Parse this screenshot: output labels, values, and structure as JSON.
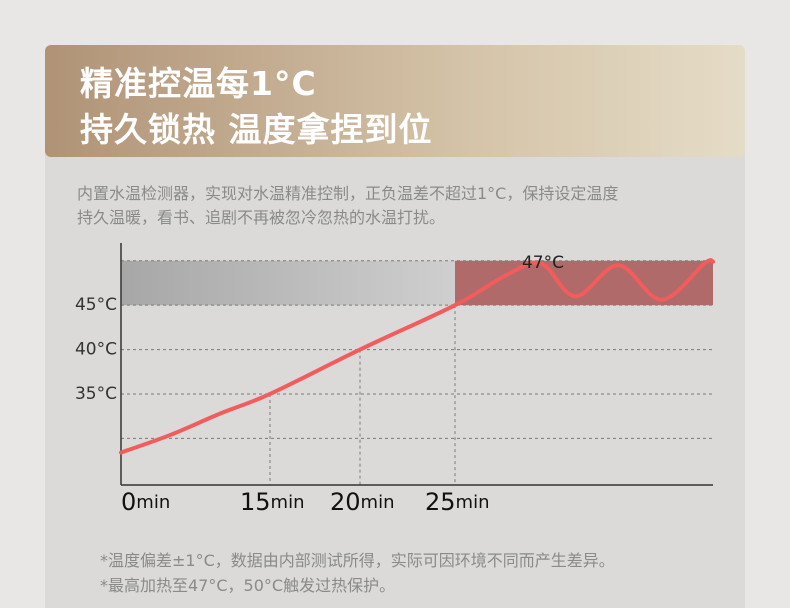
{
  "header": {
    "title_lines": [
      "精准控温每1°C",
      "持久锁热 温度拿捏到位"
    ]
  },
  "description": [
    "内置水温检测器，实现对水温精准控制，正负温差不超过1°C，保持设定温度",
    "持久温暖，看书、追剧不再被忽冷忽热的水温打扰。"
  ],
  "chart_data": {
    "type": "line",
    "x_unit": "min",
    "xlim": [
      0,
      40
    ],
    "xticks": [
      0,
      15,
      20,
      25
    ],
    "ylim": [
      24.75,
      52
    ],
    "yticks": [
      {
        "value": 35,
        "label": "35°C"
      },
      {
        "value": 40,
        "label": "40°C"
      },
      {
        "value": 45,
        "label": "45°C"
      }
    ],
    "ygrid": [
      30,
      35,
      40,
      45,
      50
    ],
    "band": [
      45,
      50
    ],
    "annotation": "47°C",
    "series": [
      {
        "color": "#f25c5c",
        "x": [
          0,
          5,
          10,
          15,
          20,
          25,
          28,
          30,
          32,
          34.5,
          37,
          39.5,
          40
        ],
        "values": [
          28.4,
          30.4,
          32.8,
          35,
          40,
          45,
          48.4,
          49.7,
          46,
          49.5,
          45.6,
          49.7,
          49.9
        ]
      }
    ]
  },
  "footnotes": [
    "*温度偏差±1°C，数据由内部测试所得，实际可因环境不同而产生差异。",
    "*最高加热至47°C，50°C触发过热保护。"
  ]
}
